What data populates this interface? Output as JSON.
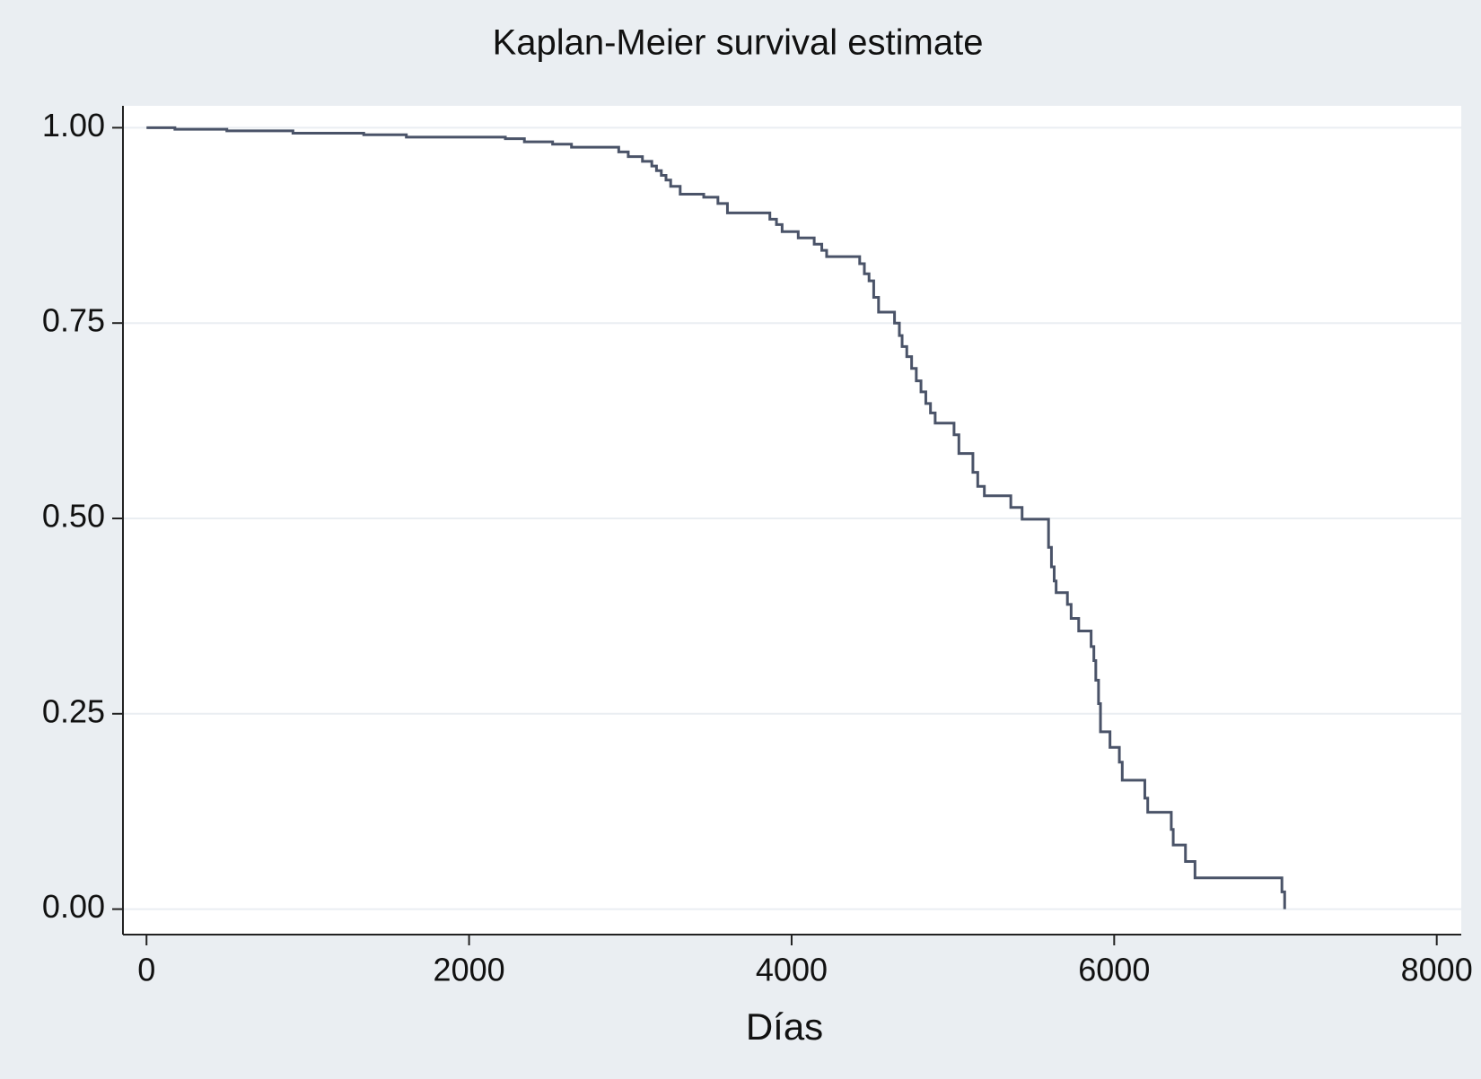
{
  "chart_data": {
    "type": "line",
    "drawstyle": "steps-post",
    "title": "Kaplan-Meier survival estimate",
    "x_label": "Días",
    "x": [
      0,
      176,
      498,
      908,
      1347,
      1611,
      2225,
      2343,
      2518,
      2635,
      2928,
      2987,
      3075,
      3133,
      3162,
      3192,
      3221,
      3250,
      3309,
      3455,
      3543,
      3602,
      3865,
      3906,
      3941,
      4041,
      4140,
      4187,
      4217,
      4422,
      4451,
      4480,
      4509,
      4539,
      4638,
      4668,
      4685,
      4714,
      4744,
      4773,
      4802,
      4832,
      4861,
      4890,
      5007,
      5037,
      5124,
      5154,
      5195,
      5359,
      5429,
      5593,
      5611,
      5628,
      5640,
      5710,
      5733,
      5780,
      5857,
      5874,
      5886,
      5903,
      5915,
      5974,
      6032,
      6050,
      6190,
      6208,
      6354,
      6366,
      6442,
      6501,
      7040,
      7057
    ],
    "values": [
      1.0,
      0.998,
      0.996,
      0.993,
      0.991,
      0.988,
      0.986,
      0.982,
      0.979,
      0.975,
      0.969,
      0.963,
      0.957,
      0.951,
      0.945,
      0.939,
      0.933,
      0.925,
      0.915,
      0.911,
      0.903,
      0.891,
      0.883,
      0.876,
      0.867,
      0.859,
      0.851,
      0.843,
      0.835,
      0.826,
      0.813,
      0.804,
      0.783,
      0.764,
      0.75,
      0.734,
      0.72,
      0.707,
      0.692,
      0.676,
      0.662,
      0.647,
      0.635,
      0.622,
      0.607,
      0.583,
      0.559,
      0.541,
      0.529,
      0.514,
      0.499,
      0.463,
      0.438,
      0.42,
      0.405,
      0.39,
      0.372,
      0.356,
      0.336,
      0.318,
      0.293,
      0.263,
      0.227,
      0.207,
      0.188,
      0.165,
      0.142,
      0.124,
      0.102,
      0.082,
      0.061,
      0.04,
      0.022,
      0.0
    ],
    "color": "#4a5368",
    "xlim": [
      -146,
      8152
    ],
    "xticks": [
      0,
      2000,
      4000,
      6000,
      8000
    ],
    "ylim": [
      -0.0326,
      1.028
    ],
    "yticks": [
      {
        "value": 0,
        "label": "0.00"
      },
      {
        "value": 0.25,
        "label": "0.25"
      },
      {
        "value": 0.5,
        "label": "0.50"
      },
      {
        "value": 0.75,
        "label": "0.75"
      },
      {
        "value": 1,
        "label": "1.00"
      }
    ],
    "grid": true
  }
}
